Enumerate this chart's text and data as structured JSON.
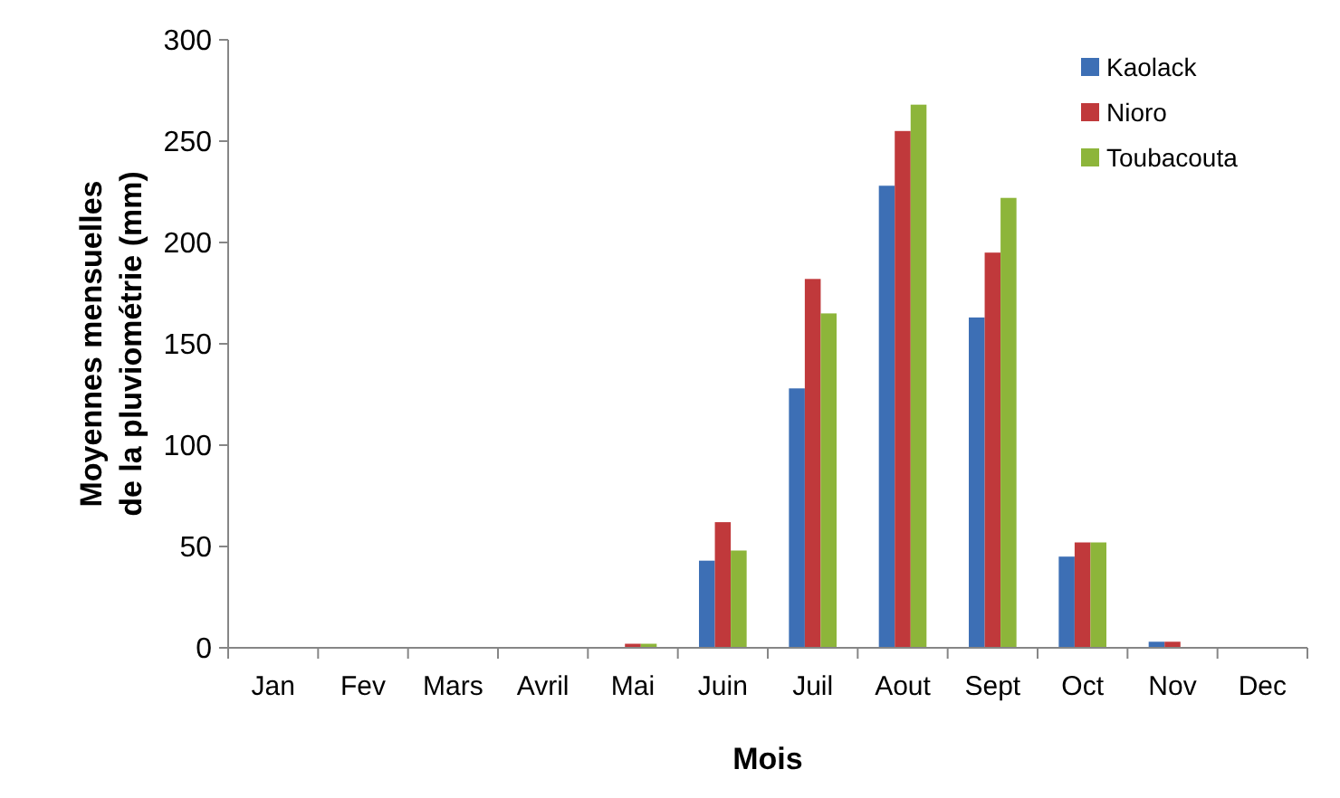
{
  "chart_data": {
    "type": "bar",
    "xlabel": "Mois",
    "ylabel": "Moyennes mensuelles de la pluviométrie (mm)",
    "categories": [
      "Jan",
      "Fev",
      "Mars",
      "Avril",
      "Mai",
      "Juin",
      "Juil",
      "Aout",
      "Sept",
      "Oct",
      "Nov",
      "Dec"
    ],
    "series": [
      {
        "name": "Kaolack",
        "color": "#3d6fb5",
        "values": [
          0,
          0,
          0,
          0,
          0,
          43,
          128,
          228,
          163,
          45,
          3,
          0
        ]
      },
      {
        "name": "Nioro",
        "color": "#c0393b",
        "values": [
          0,
          0,
          0,
          0,
          2,
          62,
          182,
          255,
          195,
          52,
          3,
          0
        ]
      },
      {
        "name": "Toubacouta",
        "color": "#8db53a",
        "values": [
          0,
          0,
          0,
          0,
          2,
          48,
          165,
          268,
          222,
          52,
          0,
          0
        ]
      }
    ],
    "ylim": [
      0,
      300
    ],
    "yticks": [
      0,
      50,
      100,
      150,
      200,
      250,
      300
    ],
    "grid": false,
    "legend": "top right"
  }
}
